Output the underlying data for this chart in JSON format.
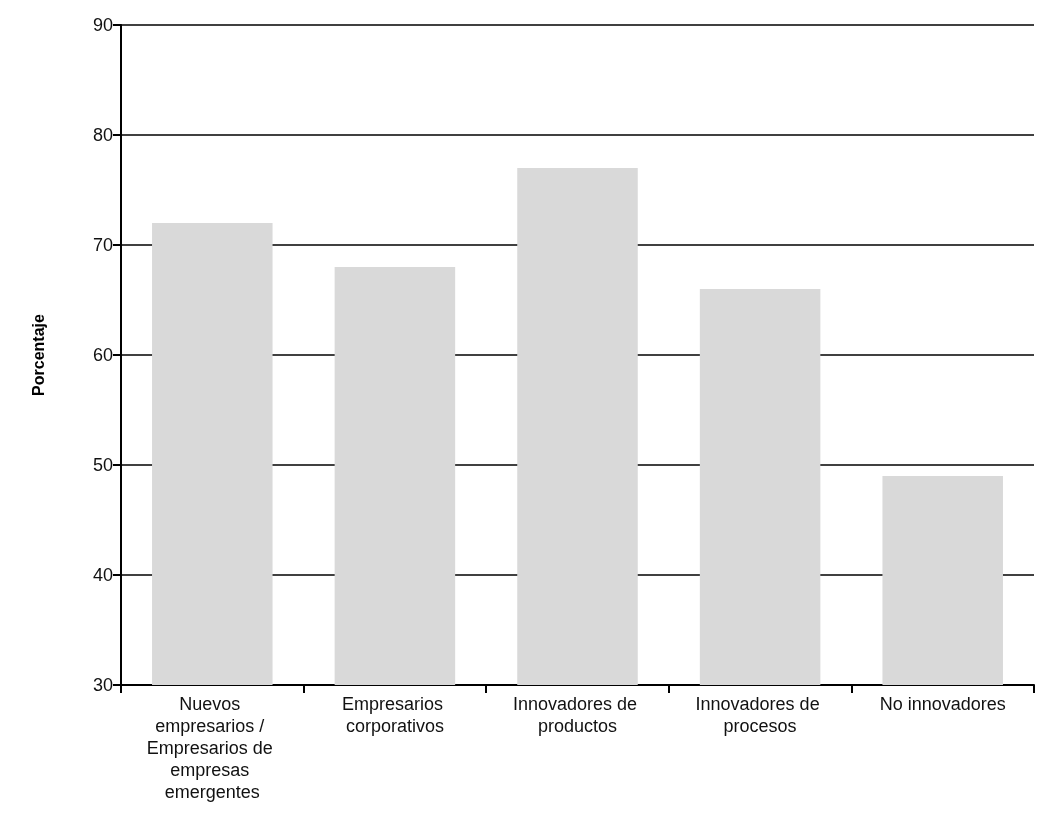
{
  "chart_data": {
    "type": "bar",
    "ylabel": "Porcentaje",
    "categories": [
      "Nuevos empresarios / Empresarios de empresas emergentes",
      "Empresarios corporativos",
      "Innovadores de productos",
      "Innovadores de procesos",
      "No innovadores"
    ],
    "values": [
      72,
      68,
      77,
      66,
      49
    ],
    "color": "#d9d9d9",
    "ylim": [
      30,
      90
    ],
    "yticks": [
      30,
      40,
      50,
      60,
      70,
      80,
      90
    ],
    "grid": "y"
  }
}
